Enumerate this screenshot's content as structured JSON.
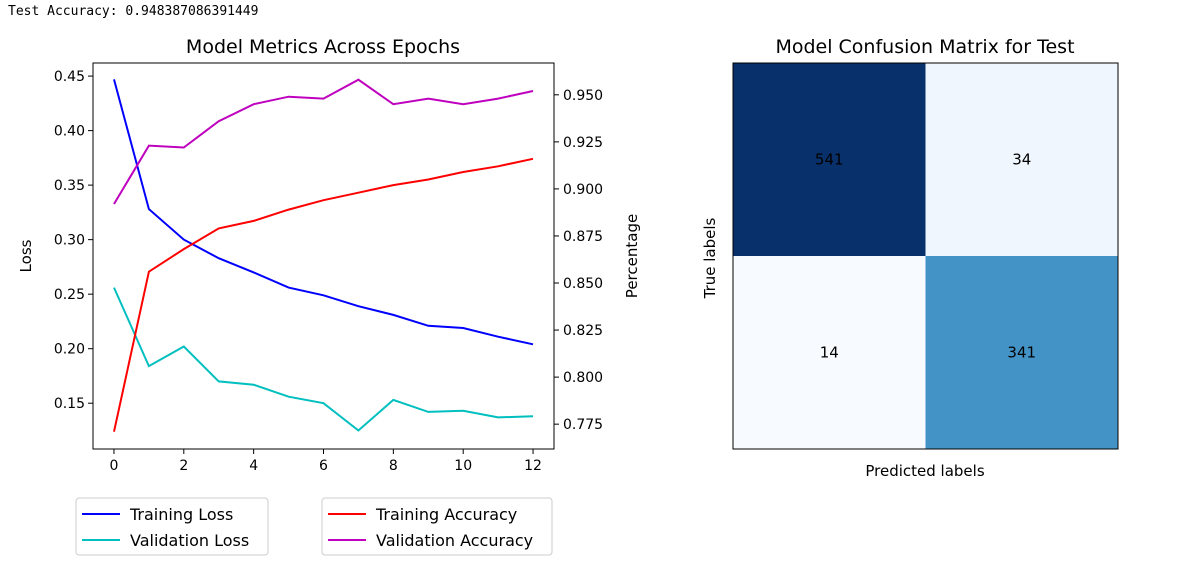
{
  "output": {
    "text": "Test Accuracy: 0.948387086391449"
  },
  "chart_data": [
    {
      "type": "line",
      "title": "Model Metrics Across Epochs",
      "xlabel": "",
      "ylabel": "Loss",
      "y2label": "Percentage",
      "x": [
        0,
        1,
        2,
        3,
        4,
        5,
        6,
        7,
        8,
        9,
        10,
        11,
        12
      ],
      "xticks": [
        0,
        2,
        4,
        6,
        8,
        10,
        12
      ],
      "xlim": [
        -0.6,
        12.6
      ],
      "ylim": [
        0.108,
        0.462
      ],
      "yticks": [
        0.15,
        0.2,
        0.25,
        0.3,
        0.35,
        0.4,
        0.45
      ],
      "y2lim": [
        0.7618,
        0.9669
      ],
      "y2ticks": [
        0.775,
        0.8,
        0.825,
        0.85,
        0.875,
        0.9,
        0.925,
        0.95
      ],
      "legend_placement": "below",
      "series": [
        {
          "name": "Training Loss",
          "axis": "left",
          "color": "#0000ff",
          "values": [
            0.447,
            0.328,
            0.3,
            0.283,
            0.27,
            0.256,
            0.249,
            0.239,
            0.231,
            0.221,
            0.219,
            0.211,
            0.204
          ]
        },
        {
          "name": "Validation Loss",
          "axis": "left",
          "color": "#00bfbf",
          "values": [
            0.256,
            0.184,
            0.202,
            0.17,
            0.167,
            0.156,
            0.15,
            0.125,
            0.153,
            0.142,
            0.143,
            0.137,
            0.138
          ]
        },
        {
          "name": "Training Accuracy",
          "axis": "right",
          "color": "#ff0000",
          "values": [
            0.771,
            0.856,
            0.868,
            0.879,
            0.883,
            0.889,
            0.894,
            0.898,
            0.902,
            0.905,
            0.909,
            0.912,
            0.916
          ]
        },
        {
          "name": "Validation Accuracy",
          "axis": "right",
          "color": "#bf00bf",
          "values": [
            0.892,
            0.923,
            0.922,
            0.936,
            0.945,
            0.949,
            0.948,
            0.958,
            0.945,
            0.948,
            0.945,
            0.948,
            0.952
          ]
        }
      ]
    },
    {
      "type": "heatmap",
      "title": "Model Confusion Matrix for Test",
      "xlabel": "Predicted labels",
      "ylabel": "True labels",
      "colormap": "Blues",
      "cells": [
        [
          541,
          34
        ],
        [
          14,
          341
        ]
      ]
    }
  ]
}
